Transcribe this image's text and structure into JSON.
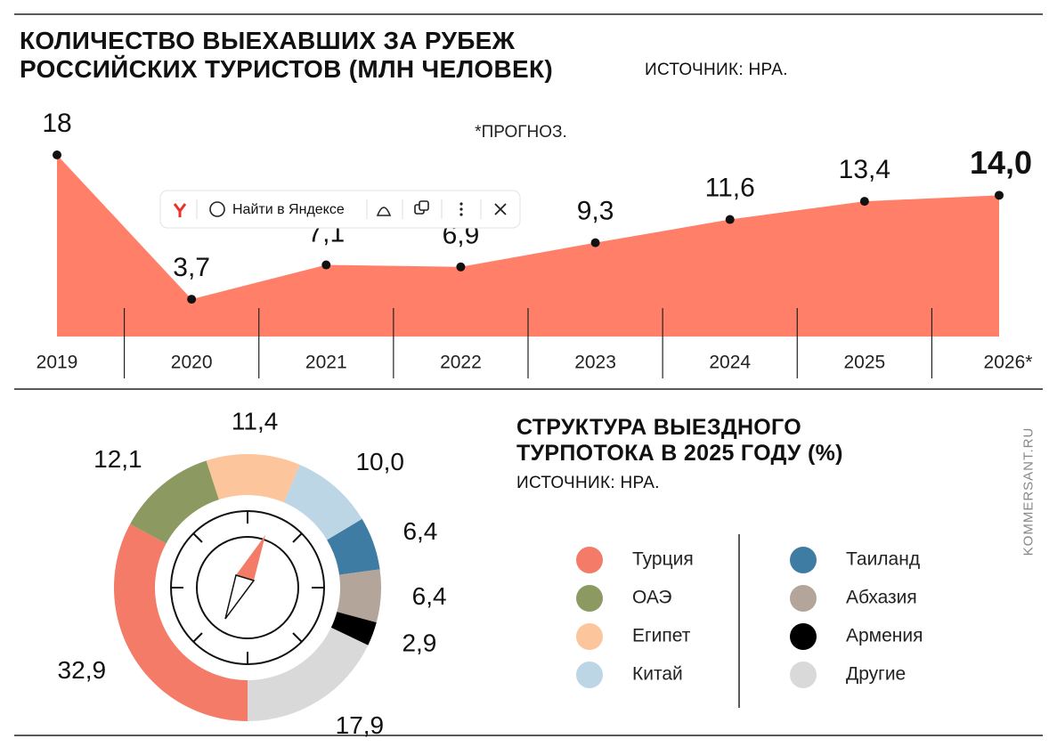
{
  "chart_data": [
    {
      "type": "area",
      "title": "КОЛИЧЕСТВО ВЫЕХАВШИХ ЗА РУБЕЖ РОССИЙСКИХ ТУРИСТОВ (МЛН ЧЕЛОВЕК)",
      "subtitle": "ИСТОЧНИК: НРА.",
      "annotation": "*ПРОГНОЗ.",
      "categories": [
        "2019",
        "2020",
        "2021",
        "2022",
        "2023",
        "2024",
        "2025",
        "2026*"
      ],
      "values": [
        18,
        3.7,
        7.1,
        6.9,
        9.3,
        11.6,
        13.4,
        14.0
      ],
      "value_labels": [
        "18",
        "3,7",
        "7,1",
        "6,9",
        "9,3",
        "11,6",
        "13,4",
        "14,0"
      ],
      "color": "#ff7f68",
      "ylim": [
        0,
        18
      ]
    },
    {
      "type": "donut",
      "title": "СТРУКТУРА ВЫЕЗДНОГО ТУРПОТОКА В 2025 ГОДУ (%)",
      "subtitle": "ИСТОЧНИК: НРА.",
      "categories": [
        "Турция",
        "ОАЭ",
        "Египет",
        "Китай",
        "Таиланд",
        "Абхазия",
        "Армения",
        "Другие"
      ],
      "values": [
        32.9,
        12.1,
        11.4,
        10.0,
        6.4,
        6.4,
        2.9,
        17.9
      ],
      "value_labels": [
        "32,9",
        "12,1",
        "11,4",
        "10,0",
        "6,4",
        "6,4",
        "2,9",
        "17,9"
      ],
      "colors": [
        "#f47b67",
        "#8c9a62",
        "#fcc59c",
        "#bcd6e6",
        "#3f7ca3",
        "#b3a59a",
        "#000000",
        "#d9d9d9"
      ]
    }
  ],
  "watermark": "KOMMERSANT.RU",
  "toolbar": {
    "search": "Найти в Яндексе"
  }
}
